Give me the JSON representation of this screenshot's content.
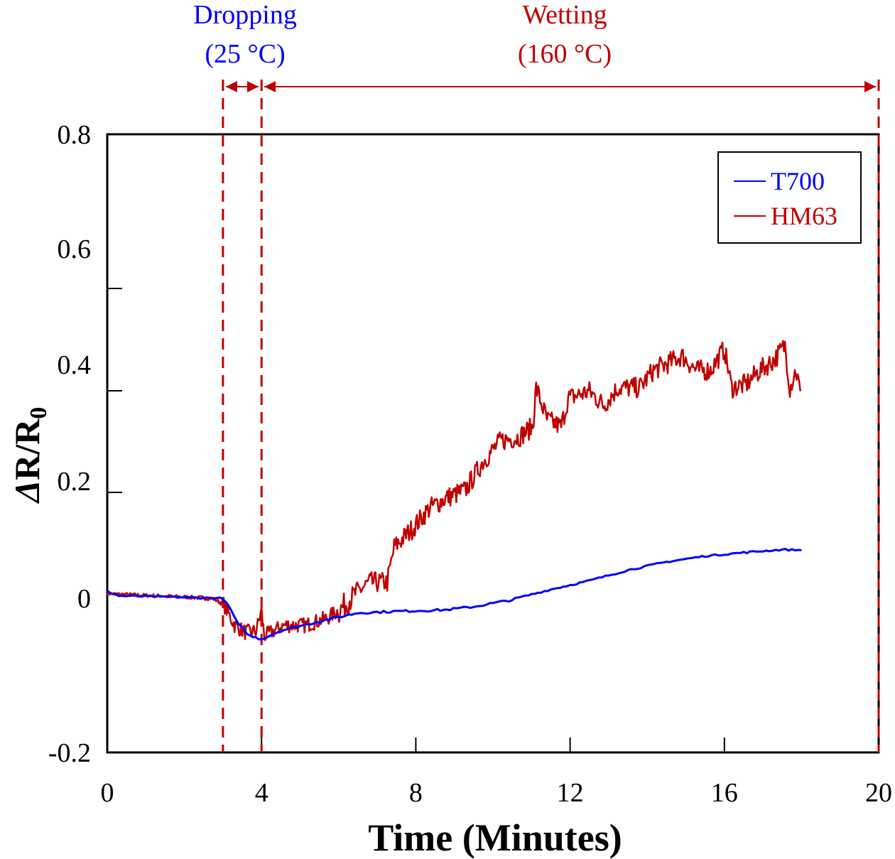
{
  "chart_data": {
    "type": "line",
    "title": "",
    "xlabel": "Time (Minutes)",
    "ylabel_prefix": "Δ",
    "ylabel_main": "R/R",
    "ylabel_sub": "0",
    "xlim": [
      0,
      20
    ],
    "ylim": [
      -0.2,
      0.8
    ],
    "xticks": [
      "0",
      "4",
      "8",
      "12",
      "16",
      "20"
    ],
    "xtick_values": [
      0,
      4,
      8,
      12,
      16,
      20
    ],
    "yticks": [
      "0.8",
      "0.6",
      "0.4",
      "0.2",
      "0",
      "-0.2"
    ],
    "ytick_values": [
      0.8,
      0.6,
      0.4,
      0.2,
      0,
      -0.2
    ],
    "grid": false,
    "legend_position": "top-right",
    "annotations": {
      "dropping_line1": "Dropping",
      "dropping_line2": "(25 °C)",
      "wetting_line1": "Wetting",
      "wetting_line2": "(160 °C)",
      "phase_boundaries": [
        3,
        4,
        20
      ]
    },
    "colors": {
      "T700": "#0000ff",
      "HM63": "#c00000",
      "dropping": "#0000ff",
      "wetting": "#c00000"
    },
    "series": [
      {
        "name": "T700",
        "x": [
          0,
          0.3,
          3.0,
          3.2,
          3.4,
          3.7,
          4.0,
          4.5,
          5.5,
          6.5,
          7.5,
          8.8,
          9.5,
          10.5,
          11.5,
          12.5,
          13.5,
          14.5,
          15.5,
          16.5,
          17.5,
          18.0
        ],
        "y": [
          0.012,
          0.004,
          0.0,
          -0.015,
          -0.034,
          -0.049,
          -0.053,
          -0.042,
          -0.03,
          -0.019,
          -0.017,
          -0.015,
          -0.011,
          -0.002,
          0.015,
          0.03,
          0.048,
          0.062,
          0.072,
          0.078,
          0.083,
          0.082
        ]
      },
      {
        "name": "HM63",
        "x": [
          0,
          2.74,
          3.02,
          3.3,
          3.57,
          3.85,
          4.0,
          4.07,
          4.59,
          5.14,
          5.69,
          6.06,
          6.43,
          6.8,
          7.26,
          7.44,
          7.9,
          8.36,
          8.82,
          9.28,
          9.74,
          10.2,
          10.66,
          11.03,
          11.12,
          11.4,
          11.77,
          11.95,
          12.5,
          12.87,
          13.24,
          13.8,
          14.16,
          14.53,
          14.9,
          15.27,
          15.64,
          16.0,
          16.19,
          16.56,
          16.92,
          17.29,
          17.57,
          17.7,
          17.85,
          17.97
        ],
        "y": [
          0.008,
          0.0,
          -0.008,
          -0.035,
          -0.044,
          -0.043,
          -0.017,
          -0.049,
          -0.035,
          -0.035,
          -0.026,
          -0.014,
          0.008,
          0.027,
          0.027,
          0.087,
          0.118,
          0.154,
          0.172,
          0.184,
          0.233,
          0.269,
          0.275,
          0.293,
          0.36,
          0.305,
          0.293,
          0.342,
          0.354,
          0.33,
          0.36,
          0.36,
          0.39,
          0.402,
          0.415,
          0.39,
          0.39,
          0.427,
          0.36,
          0.366,
          0.39,
          0.408,
          0.433,
          0.36,
          0.39,
          0.354
        ]
      }
    ]
  }
}
